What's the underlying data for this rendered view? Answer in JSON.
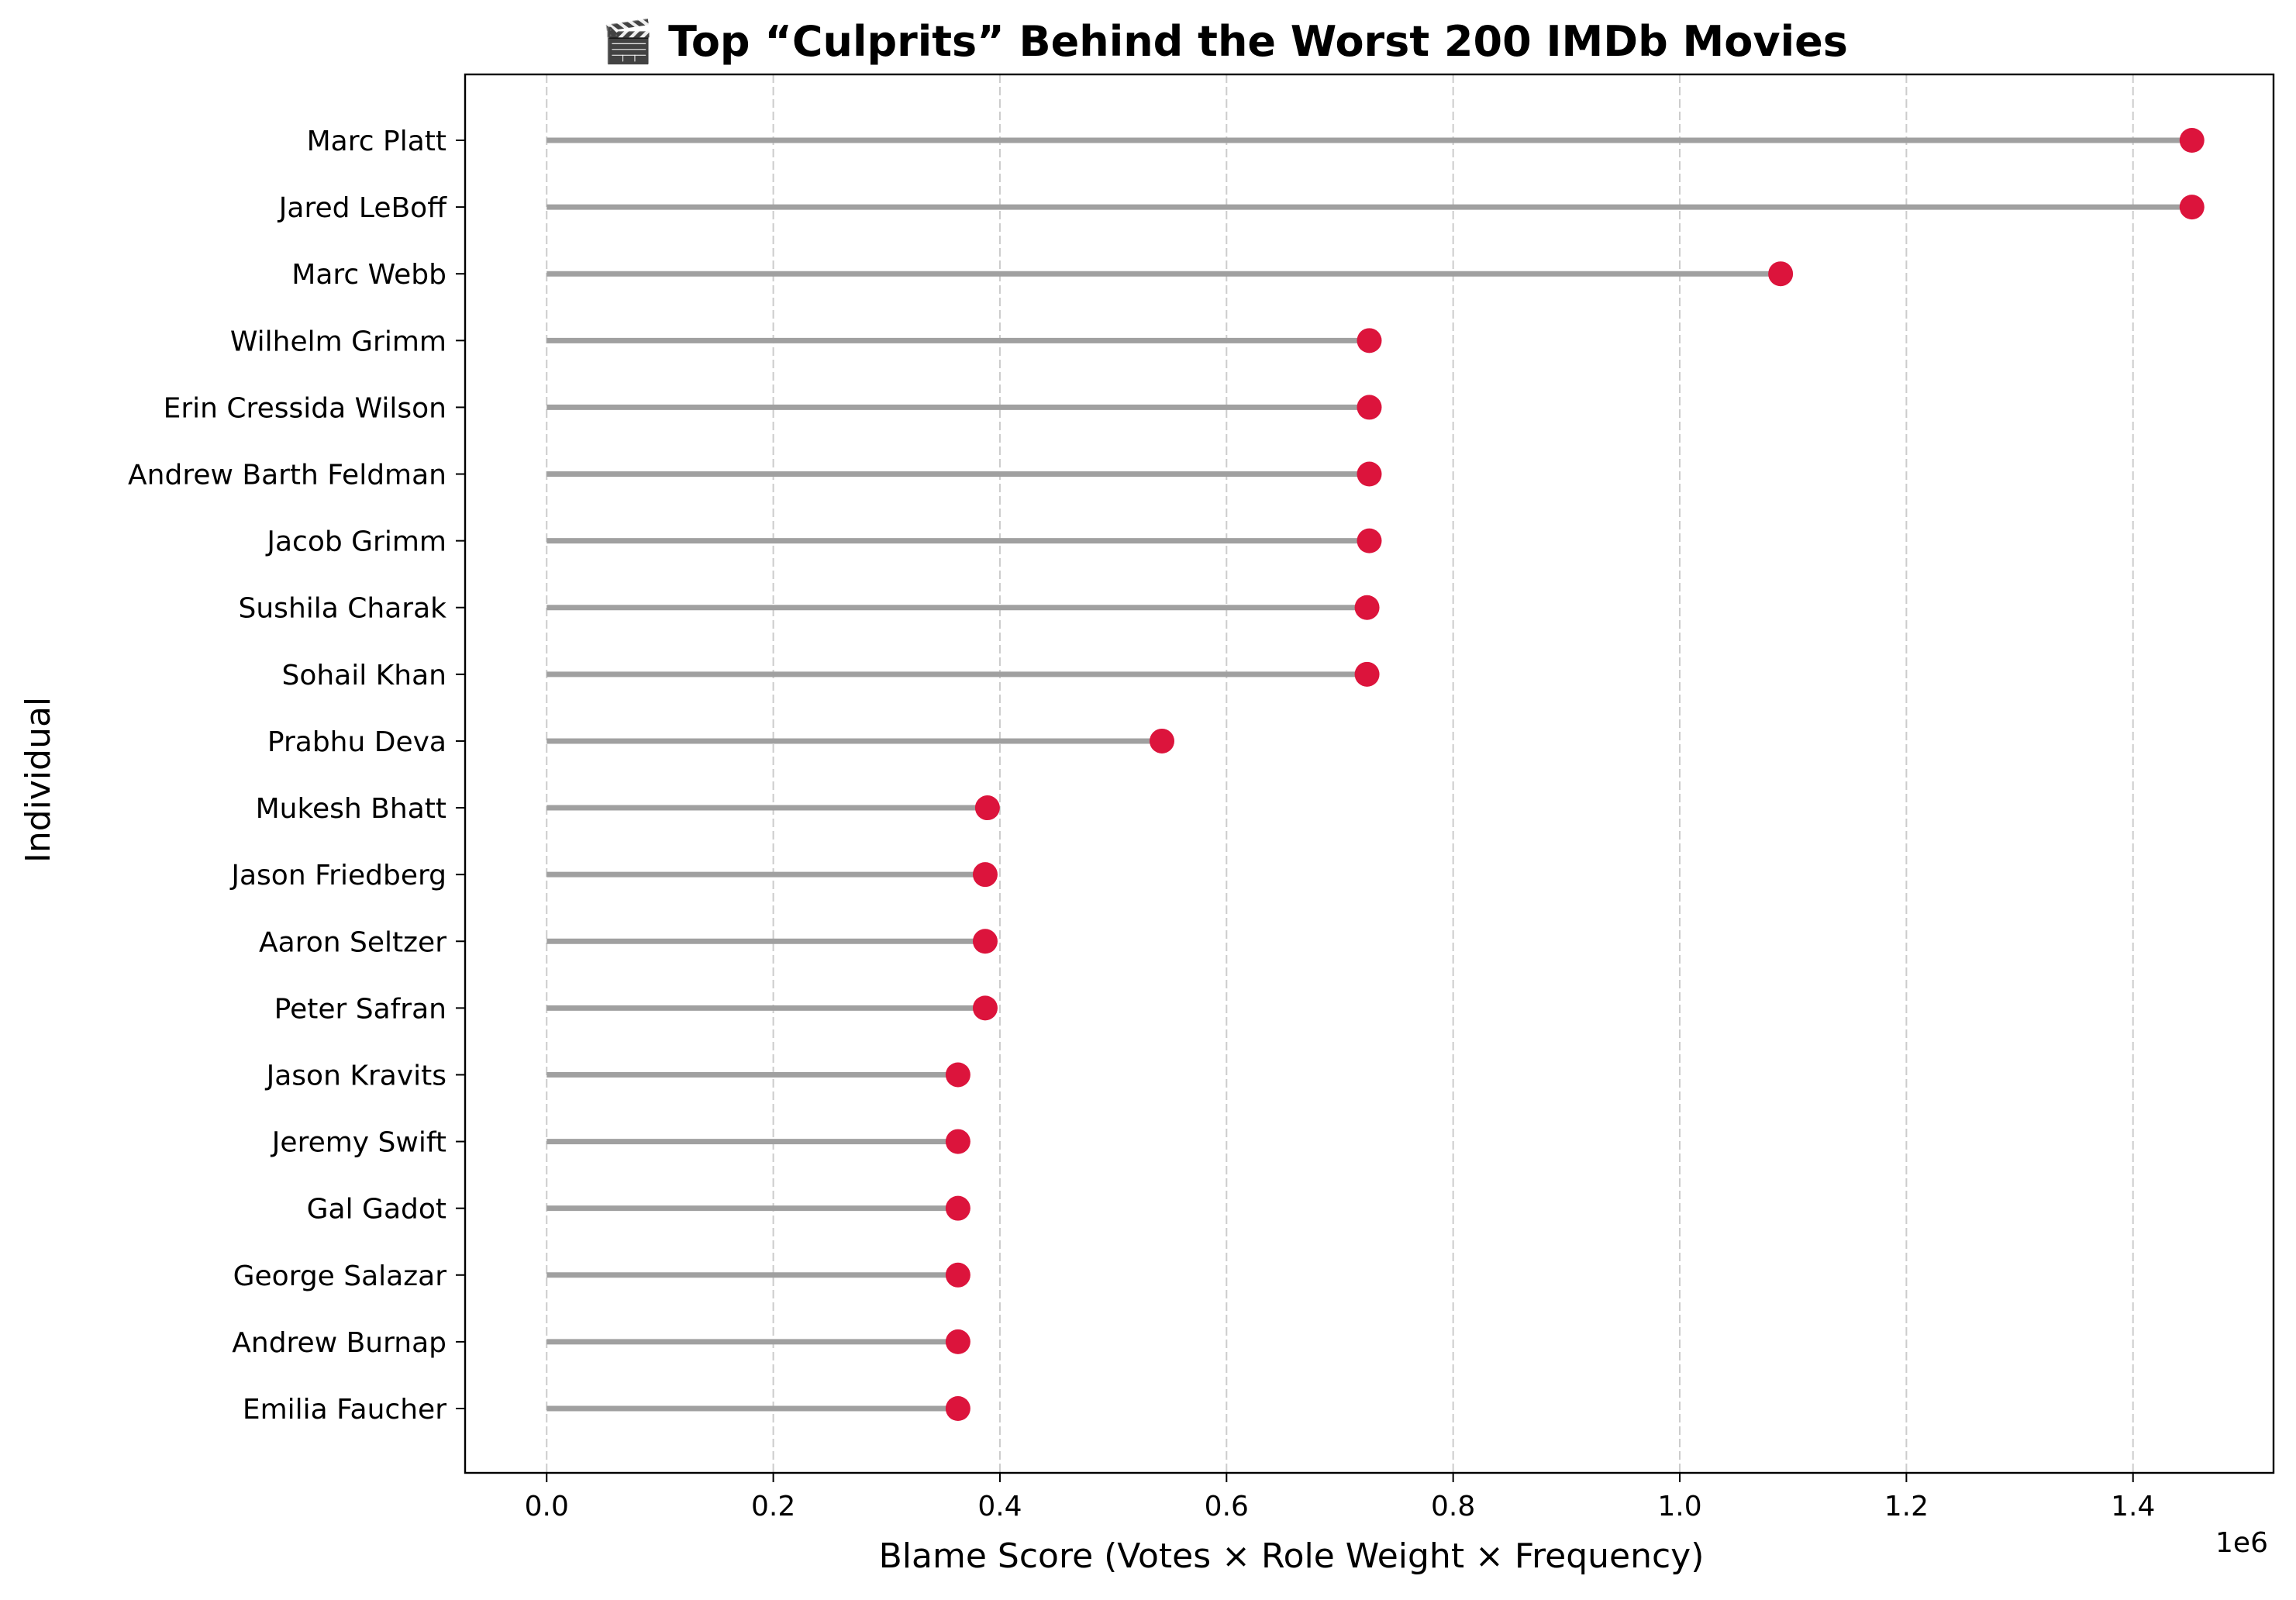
{
  "chart_data": {
    "type": "lollipop",
    "orientation": "horizontal",
    "title": "🎬 Top “Culprits” Behind the Worst 200 IMDb Movies",
    "xlabel": "Blame Score (Votes × Role Weight × Frequency)",
    "ylabel": "Individual",
    "x_offset_text": "1e6",
    "xlim": [
      -72000,
      1524000
    ],
    "x_ticks": [
      0,
      200000,
      400000,
      600000,
      800000,
      1000000,
      1200000,
      1400000
    ],
    "x_tick_labels": [
      "0.0",
      "0.2",
      "0.4",
      "0.6",
      "0.8",
      "1.0",
      "1.2",
      "1.4"
    ],
    "grid": "x-dashed",
    "colors": {
      "stem": "#a0a0a0",
      "marker": "#dc143c",
      "grid": "#cccccc",
      "axis": "#000000"
    },
    "categories": [
      "Marc Platt",
      "Jared LeBoff",
      "Marc Webb",
      "Wilhelm Grimm",
      "Erin Cressida Wilson",
      "Andrew Barth Feldman",
      "Jacob Grimm",
      "Sushila Charak",
      "Sohail Khan",
      "Prabhu Deva",
      "Mukesh Bhatt",
      "Jason Friedberg",
      "Aaron Seltzer",
      "Peter Safran",
      "Jason Kravits",
      "Jeremy Swift",
      "Gal Gadot",
      "George Salazar",
      "Andrew Burnap",
      "Emilia Faucher"
    ],
    "values": [
      1452000,
      1452000,
      1089000,
      726000,
      726000,
      726000,
      726000,
      724000,
      724000,
      543000,
      389000,
      387000,
      387000,
      387000,
      363000,
      363000,
      363000,
      363000,
      363000,
      363000
    ]
  }
}
